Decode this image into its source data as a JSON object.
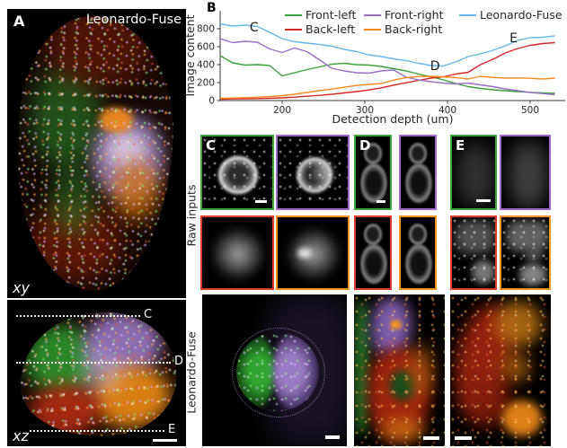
{
  "panel_a": {
    "label": "A",
    "title": "Leonardo-Fuse",
    "xy_label": "xy",
    "xz_label": "xz",
    "slices": [
      {
        "label": "C"
      },
      {
        "label": "D"
      },
      {
        "label": "E"
      }
    ]
  },
  "panel_b": {
    "label": "B"
  },
  "chart_data": {
    "type": "line",
    "title": "",
    "xlabel": "Detection depth (um)",
    "ylabel": "Image content",
    "xlim": [
      125,
      545
    ],
    "ylim": [
      0,
      900
    ],
    "xticks": [
      200,
      300,
      400,
      500
    ],
    "yticks": [
      0,
      200,
      400,
      600,
      800
    ],
    "grid": false,
    "legend_position": "top-inside",
    "legend_rows": [
      [
        "Front-left",
        "Front-right",
        "Leonardo-Fuse"
      ],
      [
        "Back-left",
        "Back-right"
      ]
    ],
    "x": [
      125,
      140,
      155,
      170,
      185,
      200,
      215,
      230,
      245,
      260,
      275,
      290,
      305,
      320,
      335,
      350,
      365,
      380,
      395,
      410,
      425,
      440,
      455,
      470,
      485,
      500,
      515,
      530
    ],
    "series": [
      {
        "name": "Front-left",
        "color": "#3aa03a",
        "values": [
          500,
          420,
          395,
          400,
          390,
          275,
          310,
          345,
          375,
          405,
          415,
          400,
          395,
          380,
          355,
          330,
          295,
          265,
          230,
          190,
          155,
          135,
          120,
          110,
          100,
          92,
          85,
          80
        ]
      },
      {
        "name": "Back-left",
        "color": "#d62728",
        "values": [
          15,
          18,
          20,
          22,
          25,
          30,
          38,
          48,
          58,
          70,
          85,
          100,
          118,
          142,
          172,
          198,
          225,
          250,
          265,
          295,
          315,
          400,
          460,
          530,
          580,
          615,
          635,
          645
        ]
      },
      {
        "name": "Front-right",
        "color": "#9a6fc4",
        "values": [
          690,
          645,
          660,
          650,
          575,
          535,
          585,
          545,
          455,
          360,
          330,
          310,
          305,
          330,
          340,
          260,
          230,
          210,
          195,
          185,
          195,
          175,
          155,
          130,
          110,
          90,
          78,
          65
        ]
      },
      {
        "name": "Back-right",
        "color": "#f68b1d",
        "values": [
          25,
          28,
          32,
          38,
          45,
          55,
          70,
          90,
          110,
          128,
          148,
          168,
          180,
          190,
          228,
          255,
          268,
          270,
          265,
          255,
          240,
          270,
          258,
          250,
          252,
          248,
          240,
          250
        ]
      },
      {
        "name": "Leonardo-Fuse",
        "color": "#65b7e6",
        "values": [
          855,
          830,
          840,
          825,
          760,
          690,
          655,
          640,
          625,
          605,
          570,
          545,
          510,
          490,
          465,
          445,
          415,
          390,
          385,
          430,
          490,
          520,
          560,
          610,
          670,
          700,
          705,
          720
        ]
      }
    ],
    "annotations": [
      {
        "text": "C",
        "x": 166,
        "y": 770
      },
      {
        "text": "D",
        "x": 385,
        "y": 340
      },
      {
        "text": "E",
        "x": 480,
        "y": 650
      }
    ]
  },
  "panel_grid": {
    "raw_label": "Raw inputs",
    "fused_label": "Leonardo-Fuse",
    "groups": [
      {
        "label": "C"
      },
      {
        "label": "D"
      },
      {
        "label": "E"
      }
    ],
    "border_colors": {
      "front_left": "#3aa83a",
      "front_right": "#a06cc8",
      "back_left": "#e03c2e",
      "back_right": "#f6921e"
    }
  }
}
